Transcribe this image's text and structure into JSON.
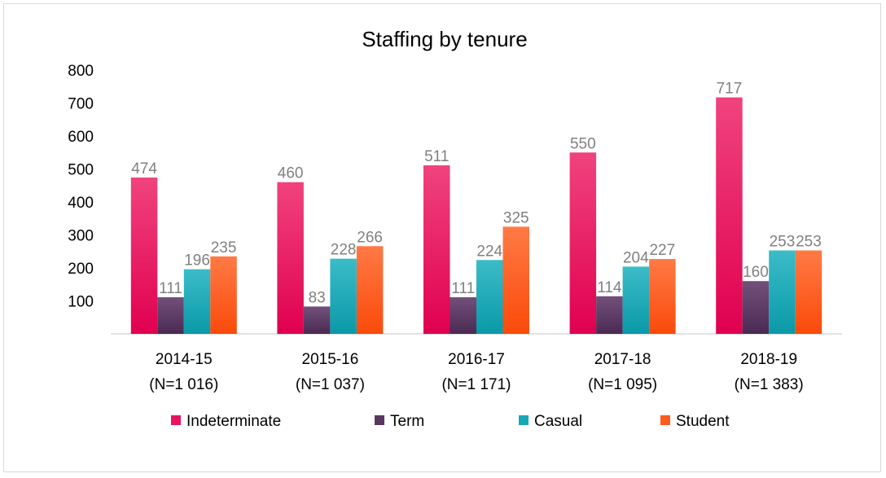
{
  "chart_data": {
    "type": "bar",
    "title": "Staffing by tenure",
    "xlabel": "",
    "ylabel": "",
    "ylim": [
      0,
      800
    ],
    "yticks": [
      100,
      200,
      300,
      400,
      500,
      600,
      700,
      800
    ],
    "grid": false,
    "legend_position": "bottom",
    "categories": [
      [
        "2014-15",
        "(N=1 016)"
      ],
      [
        "2015-16",
        "(N=1 037)"
      ],
      [
        "2016-17",
        "(N=1 171)"
      ],
      [
        "2017-18",
        "(N=1 095)"
      ],
      [
        "2018-19",
        "(N=1 383)"
      ]
    ],
    "series": [
      {
        "name": "Indeterminate",
        "values": [
          474,
          460,
          511,
          550,
          717
        ],
        "color": "#e8145f",
        "color_light": "#f0437e",
        "color_dark": "#e0004f"
      },
      {
        "name": "Term",
        "values": [
          111,
          83,
          111,
          114,
          160
        ],
        "color": "#5a3760",
        "color_light": "#72507a",
        "color_dark": "#4a2a52"
      },
      {
        "name": "Casual",
        "values": [
          196,
          228,
          224,
          204,
          253
        ],
        "color": "#16a8b6",
        "color_light": "#3bbcc8",
        "color_dark": "#0a99a8"
      },
      {
        "name": "Student",
        "values": [
          235,
          266,
          325,
          227,
          253
        ],
        "color": "#ff5a1f",
        "color_light": "#ff7a45",
        "color_dark": "#fa4a0a"
      }
    ],
    "data_labels": true
  }
}
